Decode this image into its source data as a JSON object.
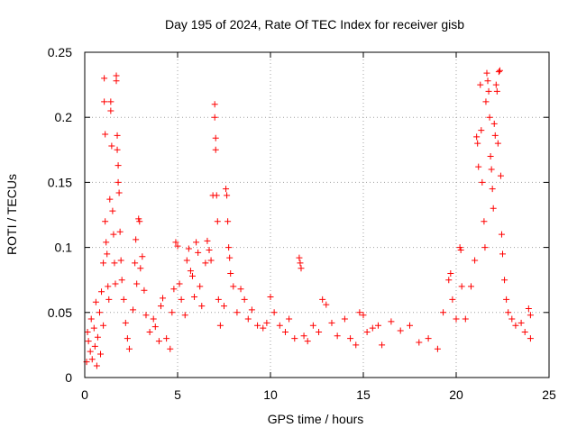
{
  "chart_data": {
    "type": "scatter",
    "title": "Day 195 of 2024, Rate Of TEC Index for receiver gisb",
    "xlabel": "GPS time / hours",
    "ylabel": "ROTI / TECUs",
    "xlim": [
      0,
      25
    ],
    "ylim": [
      0,
      0.25
    ],
    "grid": true,
    "marker": "+",
    "point_color": "#ff0000",
    "xticks": [
      0,
      5,
      10,
      15,
      20,
      25
    ],
    "xtick_labels": [
      "0",
      "5",
      "10",
      "15",
      "20",
      "25"
    ],
    "yticks": [
      0,
      0.05,
      0.1,
      0.15,
      0.2,
      0.25
    ],
    "ytick_labels": [
      "0",
      "0.05",
      "0.1",
      "0.15",
      "0.2",
      "0.25"
    ],
    "series": [
      {
        "name": "ROTI",
        "points": [
          [
            0.1,
            0.012
          ],
          [
            0.15,
            0.035
          ],
          [
            0.2,
            0.028
          ],
          [
            0.3,
            0.02
          ],
          [
            0.35,
            0.045
          ],
          [
            0.4,
            0.014
          ],
          [
            0.5,
            0.038
          ],
          [
            0.55,
            0.024
          ],
          [
            0.6,
            0.058
          ],
          [
            0.65,
            0.009
          ],
          [
            0.7,
            0.031
          ],
          [
            0.8,
            0.05
          ],
          [
            0.85,
            0.018
          ],
          [
            0.9,
            0.066
          ],
          [
            1.0,
            0.088
          ],
          [
            1.0,
            0.04
          ],
          [
            1.05,
            0.23
          ],
          [
            1.05,
            0.212
          ],
          [
            1.1,
            0.187
          ],
          [
            1.1,
            0.12
          ],
          [
            1.15,
            0.104
          ],
          [
            1.2,
            0.095
          ],
          [
            1.25,
            0.07
          ],
          [
            1.3,
            0.06
          ],
          [
            1.35,
            0.137
          ],
          [
            1.4,
            0.212
          ],
          [
            1.4,
            0.205
          ],
          [
            1.45,
            0.178
          ],
          [
            1.5,
            0.128
          ],
          [
            1.55,
            0.11
          ],
          [
            1.6,
            0.088
          ],
          [
            1.65,
            0.072
          ],
          [
            1.7,
            0.232
          ],
          [
            1.7,
            0.228
          ],
          [
            1.75,
            0.186
          ],
          [
            1.75,
            0.175
          ],
          [
            1.8,
            0.163
          ],
          [
            1.8,
            0.15
          ],
          [
            1.85,
            0.142
          ],
          [
            1.9,
            0.112
          ],
          [
            1.95,
            0.09
          ],
          [
            2.0,
            0.075
          ],
          [
            2.1,
            0.06
          ],
          [
            2.2,
            0.042
          ],
          [
            2.3,
            0.03
          ],
          [
            2.4,
            0.022
          ],
          [
            2.6,
            0.052
          ],
          [
            2.7,
            0.088
          ],
          [
            2.75,
            0.106
          ],
          [
            2.8,
            0.072
          ],
          [
            2.9,
            0.122
          ],
          [
            2.95,
            0.12
          ],
          [
            3.0,
            0.084
          ],
          [
            3.1,
            0.093
          ],
          [
            3.2,
            0.067
          ],
          [
            3.3,
            0.048
          ],
          [
            3.5,
            0.035
          ],
          [
            3.7,
            0.045
          ],
          [
            3.8,
            0.039
          ],
          [
            4.0,
            0.028
          ],
          [
            4.1,
            0.055
          ],
          [
            4.2,
            0.061
          ],
          [
            4.4,
            0.03
          ],
          [
            4.6,
            0.022
          ],
          [
            4.7,
            0.05
          ],
          [
            4.8,
            0.068
          ],
          [
            4.9,
            0.104
          ],
          [
            5.0,
            0.101
          ],
          [
            5.1,
            0.072
          ],
          [
            5.2,
            0.06
          ],
          [
            5.4,
            0.048
          ],
          [
            5.5,
            0.09
          ],
          [
            5.6,
            0.099
          ],
          [
            5.7,
            0.082
          ],
          [
            5.8,
            0.078
          ],
          [
            5.9,
            0.062
          ],
          [
            6.0,
            0.104
          ],
          [
            6.1,
            0.096
          ],
          [
            6.2,
            0.07
          ],
          [
            6.3,
            0.055
          ],
          [
            6.5,
            0.088
          ],
          [
            6.6,
            0.105
          ],
          [
            6.7,
            0.098
          ],
          [
            6.8,
            0.09
          ],
          [
            6.9,
            0.14
          ],
          [
            7.0,
            0.21
          ],
          [
            7.0,
            0.2
          ],
          [
            7.05,
            0.184
          ],
          [
            7.05,
            0.175
          ],
          [
            7.1,
            0.14
          ],
          [
            7.15,
            0.12
          ],
          [
            7.2,
            0.06
          ],
          [
            7.3,
            0.04
          ],
          [
            7.5,
            0.055
          ],
          [
            7.6,
            0.145
          ],
          [
            7.65,
            0.14
          ],
          [
            7.7,
            0.12
          ],
          [
            7.75,
            0.1
          ],
          [
            7.8,
            0.092
          ],
          [
            7.85,
            0.08
          ],
          [
            8.0,
            0.07
          ],
          [
            8.2,
            0.05
          ],
          [
            8.4,
            0.068
          ],
          [
            8.6,
            0.06
          ],
          [
            8.8,
            0.045
          ],
          [
            9.0,
            0.052
          ],
          [
            9.3,
            0.04
          ],
          [
            9.6,
            0.038
          ],
          [
            9.8,
            0.042
          ],
          [
            10.0,
            0.062
          ],
          [
            10.2,
            0.05
          ],
          [
            10.5,
            0.04
          ],
          [
            10.8,
            0.035
          ],
          [
            11.0,
            0.045
          ],
          [
            11.3,
            0.03
          ],
          [
            11.55,
            0.092
          ],
          [
            11.6,
            0.088
          ],
          [
            11.65,
            0.084
          ],
          [
            11.8,
            0.032
          ],
          [
            12.0,
            0.028
          ],
          [
            12.3,
            0.04
          ],
          [
            12.6,
            0.035
          ],
          [
            12.8,
            0.06
          ],
          [
            13.0,
            0.056
          ],
          [
            13.3,
            0.042
          ],
          [
            13.6,
            0.032
          ],
          [
            14.0,
            0.045
          ],
          [
            14.3,
            0.03
          ],
          [
            14.6,
            0.025
          ],
          [
            14.8,
            0.05
          ],
          [
            15.0,
            0.048
          ],
          [
            15.2,
            0.035
          ],
          [
            15.5,
            0.038
          ],
          [
            15.8,
            0.04
          ],
          [
            16.0,
            0.025
          ],
          [
            16.5,
            0.043
          ],
          [
            17.0,
            0.036
          ],
          [
            17.5,
            0.04
          ],
          [
            18.0,
            0.027
          ],
          [
            18.5,
            0.03
          ],
          [
            19.0,
            0.022
          ],
          [
            19.3,
            0.05
          ],
          [
            19.6,
            0.075
          ],
          [
            19.7,
            0.08
          ],
          [
            19.8,
            0.06
          ],
          [
            20.0,
            0.045
          ],
          [
            20.2,
            0.1
          ],
          [
            20.25,
            0.098
          ],
          [
            20.3,
            0.07
          ],
          [
            20.5,
            0.045
          ],
          [
            20.8,
            0.07
          ],
          [
            21.0,
            0.09
          ],
          [
            21.1,
            0.185
          ],
          [
            21.15,
            0.18
          ],
          [
            21.2,
            0.162
          ],
          [
            21.3,
            0.225
          ],
          [
            21.35,
            0.19
          ],
          [
            21.4,
            0.15
          ],
          [
            21.5,
            0.12
          ],
          [
            21.55,
            0.1
          ],
          [
            21.6,
            0.212
          ],
          [
            21.65,
            0.234
          ],
          [
            21.7,
            0.228
          ],
          [
            21.75,
            0.22
          ],
          [
            21.8,
            0.2
          ],
          [
            21.85,
            0.17
          ],
          [
            21.9,
            0.16
          ],
          [
            21.95,
            0.145
          ],
          [
            22.0,
            0.13
          ],
          [
            22.05,
            0.195
          ],
          [
            22.1,
            0.186
          ],
          [
            22.15,
            0.225
          ],
          [
            22.2,
            0.22
          ],
          [
            22.25,
            0.18
          ],
          [
            22.3,
            0.235
          ],
          [
            22.35,
            0.236
          ],
          [
            22.4,
            0.155
          ],
          [
            22.45,
            0.11
          ],
          [
            22.5,
            0.095
          ],
          [
            22.6,
            0.075
          ],
          [
            22.7,
            0.06
          ],
          [
            22.8,
            0.05
          ],
          [
            23.0,
            0.045
          ],
          [
            23.2,
            0.04
          ],
          [
            23.5,
            0.042
          ],
          [
            23.7,
            0.035
          ],
          [
            23.9,
            0.053
          ],
          [
            24.0,
            0.048
          ],
          [
            24.0,
            0.03
          ]
        ]
      }
    ]
  }
}
